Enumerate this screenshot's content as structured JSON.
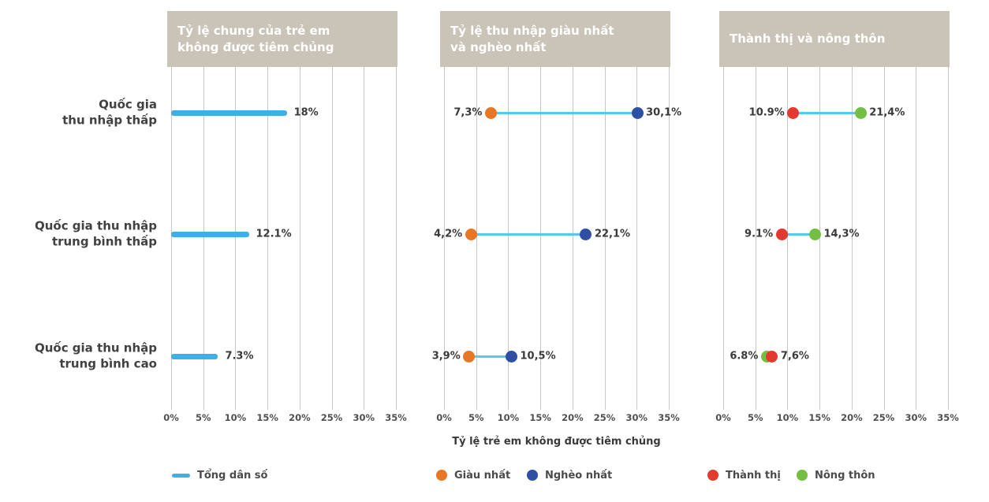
{
  "figure": {
    "xaxis_title": "Tỷ lệ trẻ em không được tiêm chủng",
    "categories": [
      {
        "line1": "Quốc gia",
        "line2": "thu nhập thấp"
      },
      {
        "line1": "Quốc gia thu nhập",
        "line2": "trung bình thấp"
      },
      {
        "line1": "Quốc gia thu nhập",
        "line2": "trung bình cao"
      }
    ]
  },
  "colors": {
    "total_population": "#3fafe4",
    "richest": "#e97624",
    "poorest": "#2d50a5",
    "urban": "#e23a2e",
    "rural": "#72bf44",
    "connector": "#5bc6f0",
    "header_bg": "#cac3b8",
    "gridline": "#c6c6c6"
  },
  "legend": [
    {
      "key": "total-population",
      "color_key": "total_population",
      "shape": "line",
      "label": "Tổng dân số"
    },
    {
      "key": "richest",
      "color_key": "richest",
      "shape": "dot",
      "label": "Giàu nhất"
    },
    {
      "key": "poorest",
      "color_key": "poorest",
      "shape": "dot",
      "label": "Nghèo nhất"
    },
    {
      "key": "urban",
      "color_key": "urban",
      "shape": "dot",
      "label": "Thành thị"
    },
    {
      "key": "rural",
      "color_key": "rural",
      "shape": "dot",
      "label": "Nông thôn"
    }
  ],
  "chart_data": [
    {
      "type": "bar",
      "title_lines": [
        "Tỷ lệ chung của trẻ em",
        "không được tiêm chủng"
      ],
      "categories": [
        "Quốc gia thu nhập thấp",
        "Quốc gia thu nhập trung bình thấp",
        "Quốc gia thu nhập trung bình cao"
      ],
      "xlim": [
        0,
        35
      ],
      "xticks": [
        "0%",
        "5%",
        "10%",
        "15%",
        "20%",
        "25%",
        "30%",
        "35%"
      ],
      "series": [
        {
          "name": "Tổng dân số",
          "color_key": "total_population",
          "values": [
            18,
            12.1,
            7.3
          ],
          "labels": [
            "18%",
            "12.1%",
            "7.3%"
          ]
        }
      ]
    },
    {
      "type": "dumbbell",
      "title_lines": [
        "Tỷ lệ thu nhập giàu nhất",
        "và nghèo nhất"
      ],
      "categories": [
        "Quốc gia thu nhập thấp",
        "Quốc gia thu nhập trung bình thấp",
        "Quốc gia thu nhập trung bình cao"
      ],
      "xlim": [
        0,
        35
      ],
      "xticks": [
        "0%",
        "5%",
        "10%",
        "15%",
        "20%",
        "25%",
        "30%",
        "35%"
      ],
      "series": [
        {
          "name": "Giàu nhất",
          "color_key": "richest",
          "values": [
            7.3,
            4.2,
            3.9
          ],
          "labels": [
            "7,3%",
            "4,2%",
            "3,9%"
          ]
        },
        {
          "name": "Nghèo nhất",
          "color_key": "poorest",
          "values": [
            30.1,
            22.1,
            10.5
          ],
          "labels": [
            "30,1%",
            "22,1%",
            "10,5%"
          ]
        }
      ]
    },
    {
      "type": "dumbbell",
      "title_lines": [
        "Thành thị và nông thôn"
      ],
      "categories": [
        "Quốc gia thu nhập thấp",
        "Quốc gia thu nhập trung bình thấp",
        "Quốc gia thu nhập trung bình cao"
      ],
      "xlim": [
        0,
        35
      ],
      "xticks": [
        "0%",
        "5%",
        "10%",
        "15%",
        "20%",
        "25%",
        "30%",
        "35%"
      ],
      "series": [
        {
          "name": "Thành thị",
          "color_key": "urban",
          "values": [
            10.9,
            9.1,
            7.6
          ],
          "labels": [
            "10.9%",
            "9.1%",
            "7,6%"
          ]
        },
        {
          "name": "Nông thôn",
          "color_key": "rural",
          "values": [
            21.4,
            14.3,
            6.8
          ],
          "labels": [
            "21,4%",
            "14,3%",
            "6.8%"
          ]
        }
      ]
    }
  ]
}
